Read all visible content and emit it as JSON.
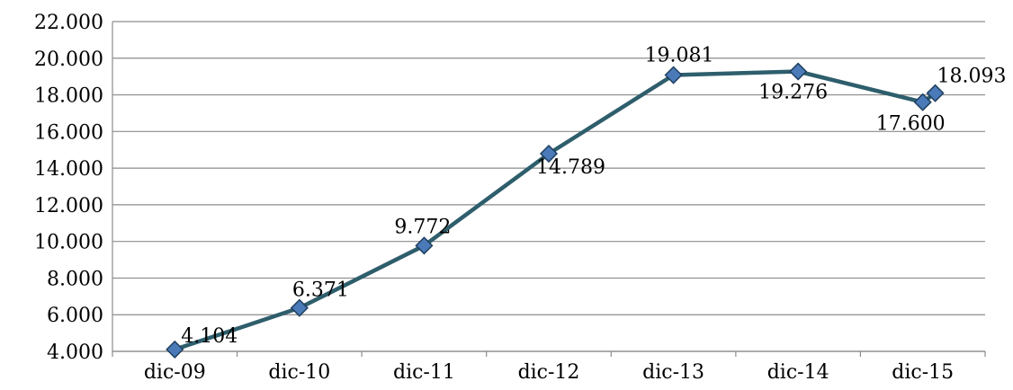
{
  "chart_data": {
    "type": "line",
    "title": "",
    "xlabel": "",
    "ylabel": "",
    "ylim": [
      4000,
      22000
    ],
    "grid": true,
    "legend": "none",
    "x_tick_labels": [
      "dic-09",
      "dic-10",
      "dic-11",
      "dic-12",
      "dic-13",
      "dic-14",
      "dic-15"
    ],
    "y_tick_values": [
      4000,
      6000,
      8000,
      10000,
      12000,
      14000,
      16000,
      18000,
      20000,
      22000
    ],
    "y_tick_labels": [
      "4.000",
      "6.000",
      "8.000",
      "10.000",
      "12.000",
      "14.000",
      "16.000",
      "18.000",
      "20.000",
      "22.000"
    ],
    "series": [
      {
        "points": [
          {
            "x": 0,
            "y": 4104,
            "label": "4.104"
          },
          {
            "x": 1,
            "y": 6371,
            "label": "6.371"
          },
          {
            "x": 2,
            "y": 9772,
            "label": "9.772"
          },
          {
            "x": 3,
            "y": 14789,
            "label": "14.789"
          },
          {
            "x": 4,
            "y": 19081,
            "label": "19.081"
          },
          {
            "x": 5,
            "y": 19276,
            "label": "19.276"
          },
          {
            "x": 6,
            "y": 17600,
            "label": "17.600"
          },
          {
            "x": 6.1,
            "y": 18093,
            "label": "18.093"
          }
        ],
        "line_color": "#2e5e6c",
        "marker_color": "#4a7ab8"
      }
    ]
  }
}
